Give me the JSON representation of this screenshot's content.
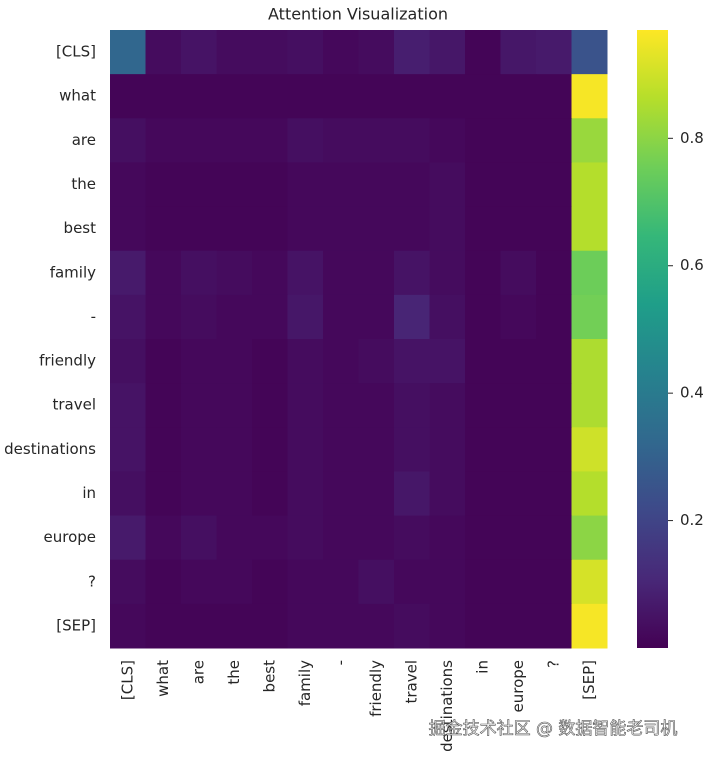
{
  "chart_data": {
    "type": "heatmap",
    "title": "Attention Visualization",
    "x_categories": [
      "[CLS]",
      "what",
      "are",
      "the",
      "best",
      "family",
      "-",
      "friendly",
      "travel",
      "destinations",
      "in",
      "europe",
      "?",
      "[SEP]"
    ],
    "y_categories": [
      "[CLS]",
      "what",
      "are",
      "the",
      "best",
      "family",
      "-",
      "friendly",
      "travel",
      "destinations",
      "in",
      "europe",
      "?",
      "[SEP]"
    ],
    "z": [
      [
        0.32,
        0.03,
        0.05,
        0.03,
        0.03,
        0.04,
        0.02,
        0.03,
        0.08,
        0.06,
        0.01,
        0.06,
        0.07,
        0.25
      ],
      [
        0.01,
        0.01,
        0.01,
        0.01,
        0.01,
        0.01,
        0.01,
        0.01,
        0.01,
        0.01,
        0.01,
        0.01,
        0.01,
        0.96
      ],
      [
        0.04,
        0.02,
        0.02,
        0.02,
        0.02,
        0.04,
        0.03,
        0.03,
        0.03,
        0.02,
        0.01,
        0.01,
        0.01,
        0.82
      ],
      [
        0.02,
        0.01,
        0.01,
        0.01,
        0.01,
        0.02,
        0.02,
        0.02,
        0.02,
        0.03,
        0.01,
        0.01,
        0.01,
        0.86
      ],
      [
        0.02,
        0.01,
        0.01,
        0.01,
        0.01,
        0.02,
        0.02,
        0.02,
        0.02,
        0.03,
        0.01,
        0.01,
        0.01,
        0.86
      ],
      [
        0.07,
        0.02,
        0.04,
        0.03,
        0.02,
        0.05,
        0.02,
        0.02,
        0.05,
        0.03,
        0.01,
        0.03,
        0.01,
        0.75
      ],
      [
        0.05,
        0.02,
        0.03,
        0.02,
        0.02,
        0.06,
        0.02,
        0.02,
        0.1,
        0.04,
        0.01,
        0.02,
        0.01,
        0.76
      ],
      [
        0.04,
        0.01,
        0.02,
        0.02,
        0.01,
        0.03,
        0.02,
        0.03,
        0.05,
        0.05,
        0.01,
        0.01,
        0.01,
        0.85
      ],
      [
        0.05,
        0.01,
        0.02,
        0.02,
        0.01,
        0.03,
        0.02,
        0.02,
        0.04,
        0.03,
        0.01,
        0.01,
        0.01,
        0.85
      ],
      [
        0.05,
        0.01,
        0.02,
        0.02,
        0.01,
        0.03,
        0.02,
        0.02,
        0.04,
        0.03,
        0.01,
        0.01,
        0.01,
        0.9
      ],
      [
        0.04,
        0.01,
        0.02,
        0.02,
        0.01,
        0.03,
        0.02,
        0.02,
        0.06,
        0.03,
        0.01,
        0.01,
        0.01,
        0.86
      ],
      [
        0.07,
        0.02,
        0.04,
        0.02,
        0.02,
        0.03,
        0.02,
        0.02,
        0.03,
        0.02,
        0.01,
        0.01,
        0.01,
        0.8
      ],
      [
        0.03,
        0.01,
        0.02,
        0.02,
        0.01,
        0.02,
        0.02,
        0.04,
        0.02,
        0.02,
        0.01,
        0.01,
        0.01,
        0.91
      ],
      [
        0.02,
        0.01,
        0.01,
        0.01,
        0.01,
        0.02,
        0.02,
        0.02,
        0.03,
        0.02,
        0.01,
        0.01,
        0.01,
        0.96
      ]
    ],
    "colormap": "viridis",
    "clim": [
      0.0,
      0.97
    ],
    "cticks": [
      0.2,
      0.4,
      0.6,
      0.8
    ],
    "watermark": "掘金技术社区 @ 数据智能老司机"
  }
}
